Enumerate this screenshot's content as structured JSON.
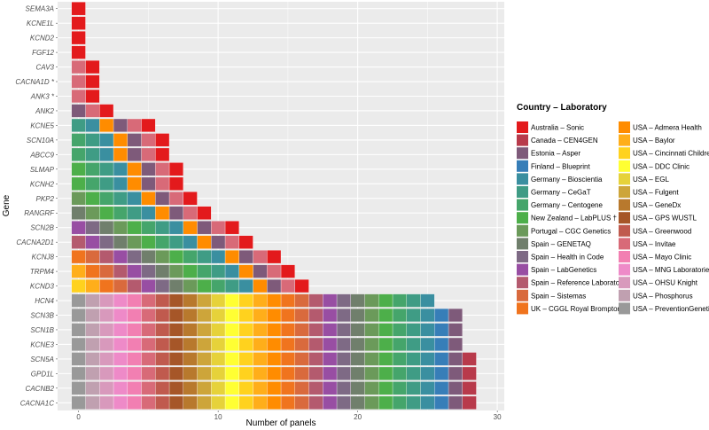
{
  "chart_data": {
    "type": "bar",
    "orientation": "horizontal",
    "stacked": true,
    "xlabel": "Number of panels",
    "ylabel": "Gene",
    "xlim": [
      -1.5,
      30.5
    ],
    "xticks": [
      0,
      10,
      20,
      30
    ],
    "grid": true,
    "legend_title": "Country – Laboratory",
    "legend_position": "right",
    "genes": [
      "SEMA3A",
      "KCNE1L",
      "KCND2",
      "FGF12",
      "CAV3",
      "CACNA1D *",
      "ANK3 *",
      "ANK2",
      "KCNE5",
      "SCN10A",
      "ABCC9",
      "SLMAP",
      "KCNH2",
      "PKP2",
      "RANGRF",
      "SCN2B",
      "CACNA2D1",
      "KCNJ8",
      "TRPM4",
      "KCND3",
      "HCN4",
      "SCN3B",
      "SCN1B",
      "KCNE3",
      "SCN5A",
      "GPD1L",
      "CACNB2",
      "CACNA1C"
    ],
    "values": [
      1,
      1,
      1,
      1,
      2,
      2,
      2,
      3,
      6,
      7,
      7,
      8,
      8,
      9,
      10,
      12,
      13,
      15,
      16,
      17,
      26,
      28,
      28,
      28,
      29,
      29,
      29,
      29
    ],
    "labs": [
      {
        "name": "Australia – Sonic",
        "color": "#e31a1c"
      },
      {
        "name": "Canada – CEN4GEN",
        "color": "#b83a4b"
      },
      {
        "name": "Estonia – Asper",
        "color": "#7e5a7a"
      },
      {
        "name": "Finland – Blueprint",
        "color": "#377eb8"
      },
      {
        "name": "Germany – Bioscientia",
        "color": "#3a8fa0"
      },
      {
        "name": "Germany – CeGaT",
        "color": "#3f9c85"
      },
      {
        "name": "Germany – Centogene",
        "color": "#45a56b"
      },
      {
        "name": "New Zealand – LabPLUS †",
        "color": "#4daf4a"
      },
      {
        "name": "Portugal – CGC Genetics",
        "color": "#6b9a5a"
      },
      {
        "name": "Spain – GENETAQ",
        "color": "#707f6c"
      },
      {
        "name": "Spain – Health in Code",
        "color": "#7e6a85"
      },
      {
        "name": "Spain – LabGenetics",
        "color": "#984ea3"
      },
      {
        "name": "Spain – Reference Laboratory",
        "color": "#b45a6e"
      },
      {
        "name": "Spain – Sistemas",
        "color": "#d96a3d"
      },
      {
        "name": "UK – CGGL Royal Brompton",
        "color": "#f0741e"
      },
      {
        "name": "USA – Admera Health",
        "color": "#ff8c00"
      },
      {
        "name": "USA – Baylor",
        "color": "#ffae1a"
      },
      {
        "name": "USA – Cincinnati Children's",
        "color": "#ffd21e"
      },
      {
        "name": "USA – DDC Clinic",
        "color": "#ffff33"
      },
      {
        "name": "USA – EGL",
        "color": "#e6d23a"
      },
      {
        "name": "USA – Fulgent",
        "color": "#cda53a"
      },
      {
        "name": "USA – GeneDx",
        "color": "#b8792d"
      },
      {
        "name": "USA – GPS WUSTL",
        "color": "#a65628"
      },
      {
        "name": "USA – Greenwood",
        "color": "#c05a4e"
      },
      {
        "name": "USA – Invitae",
        "color": "#d86a78"
      },
      {
        "name": "USA – Mayo Clinic",
        "color": "#f27fb2"
      },
      {
        "name": "USA – MNG Laboratories",
        "color": "#ee8ac8"
      },
      {
        "name": "USA – OHSU Knight",
        "color": "#d899bc"
      },
      {
        "name": "USA – Phosphorus",
        "color": "#c0a0b0"
      },
      {
        "name": "USA – PreventionGenetics",
        "color": "#999999"
      }
    ]
  }
}
